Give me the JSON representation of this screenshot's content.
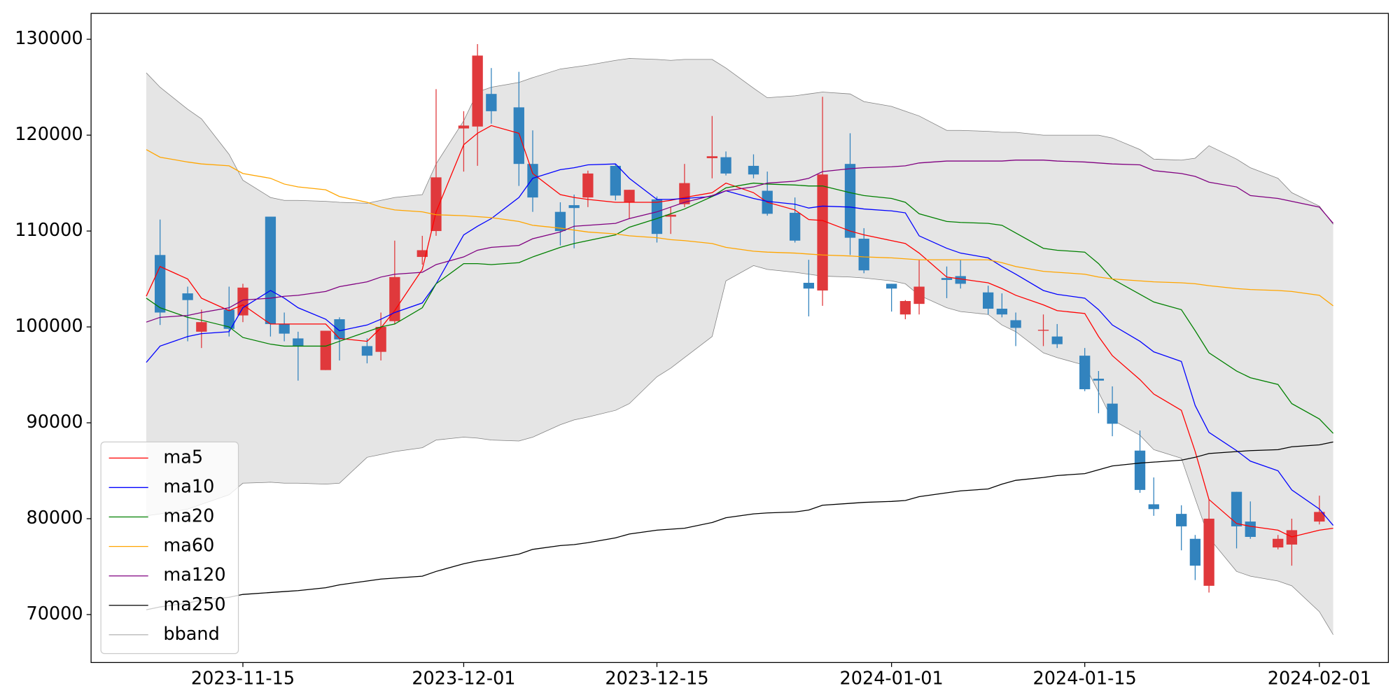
{
  "chart_data": {
    "type": "candlestick",
    "x": [
      "2023-11-08",
      "2023-11-09",
      "2023-11-11",
      "2023-11-12",
      "2023-11-14",
      "2023-11-15",
      "2023-11-17",
      "2023-11-18",
      "2023-11-19",
      "2023-11-21",
      "2023-11-22",
      "2023-11-24",
      "2023-11-25",
      "2023-11-26",
      "2023-11-28",
      "2023-11-29",
      "2023-12-01",
      "2023-12-02",
      "2023-12-03",
      "2023-12-05",
      "2023-12-06",
      "2023-12-08",
      "2023-12-09",
      "2023-12-10",
      "2023-12-12",
      "2023-12-13",
      "2023-12-15",
      "2023-12-16",
      "2023-12-17",
      "2023-12-19",
      "2023-12-20",
      "2023-12-22",
      "2023-12-23",
      "2023-12-25",
      "2023-12-26",
      "2023-12-27",
      "2023-12-29",
      "2023-12-30",
      "2024-01-01",
      "2024-01-02",
      "2024-01-03",
      "2024-01-05",
      "2024-01-06",
      "2024-01-08",
      "2024-01-09",
      "2024-01-10",
      "2024-01-12",
      "2024-01-13",
      "2024-01-15",
      "2024-01-16",
      "2024-01-17",
      "2024-01-19",
      "2024-01-20",
      "2024-01-22",
      "2024-01-23",
      "2024-01-24",
      "2024-01-26",
      "2024-01-27",
      "2024-01-29",
      "2024-01-30",
      "2024-02-01",
      "2024-02-02"
    ],
    "open": [
      null,
      107500,
      103500,
      99500,
      101800,
      101200,
      111500,
      100300,
      98800,
      95500,
      100800,
      98000,
      97400,
      100600,
      107300,
      110000,
      120700,
      120900,
      124300,
      122900,
      117000,
      112000,
      112700,
      113500,
      116800,
      113000,
      113300,
      111500,
      112800,
      117600,
      117700,
      116800,
      114200,
      111900,
      104600,
      103800,
      117000,
      109200,
      104500,
      101300,
      102400,
      105100,
      105300,
      103600,
      101900,
      100700,
      99600,
      99000,
      97000,
      94600,
      92000,
      87100,
      81500,
      80500,
      77900,
      73000,
      82800,
      79700,
      77000,
      77300,
      79700,
      null
    ],
    "high": [
      null,
      111200,
      104200,
      101800,
      104200,
      104500,
      111500,
      101500,
      99500,
      99600,
      101000,
      98800,
      101500,
      109000,
      109500,
      124800,
      122500,
      129500,
      127000,
      126600,
      120500,
      113000,
      113800,
      116300,
      117000,
      114300,
      113600,
      112500,
      117000,
      122000,
      118300,
      118000,
      116200,
      113500,
      107000,
      124000,
      120200,
      110300,
      104500,
      102800,
      107000,
      106300,
      107000,
      104300,
      103500,
      101500,
      101300,
      100300,
      97800,
      95400,
      93800,
      89200,
      84300,
      81400,
      78300,
      82000,
      82800,
      81800,
      78300,
      80000,
      82400,
      null
    ],
    "low": [
      null,
      100200,
      98500,
      97800,
      99000,
      100500,
      99000,
      98500,
      94400,
      95500,
      96500,
      96200,
      96500,
      100300,
      106500,
      109500,
      116200,
      116800,
      121200,
      114700,
      112000,
      108500,
      108200,
      112500,
      113200,
      111300,
      108800,
      109700,
      112500,
      115500,
      115800,
      115500,
      111600,
      108800,
      101100,
      102200,
      107500,
      105600,
      101600,
      100800,
      101300,
      103000,
      104000,
      101300,
      101000,
      98000,
      98000,
      97800,
      93300,
      91000,
      88600,
      82700,
      80300,
      76700,
      73600,
      72300,
      76900,
      77900,
      76800,
      75100,
      79400,
      null
    ],
    "close": [
      null,
      101500,
      102800,
      100500,
      99800,
      104100,
      100300,
      99300,
      98000,
      99600,
      98700,
      97000,
      100000,
      105200,
      108000,
      115600,
      121000,
      128300,
      122500,
      117000,
      113500,
      110000,
      112400,
      116000,
      113700,
      114300,
      109700,
      111700,
      115000,
      117800,
      116000,
      115900,
      111800,
      109000,
      104000,
      115900,
      109300,
      105900,
      104000,
      102700,
      104200,
      104900,
      104500,
      101900,
      101300,
      99900,
      99700,
      98200,
      93500,
      94400,
      89900,
      83000,
      81000,
      79200,
      75100,
      80000,
      79200,
      78100,
      77900,
      78800,
      80700,
      null
    ],
    "up_color": "#e0393c",
    "down_color": "#3283be",
    "series": [
      {
        "name": "ma5",
        "color": "#ff0000",
        "values": [
          103200,
          106300,
          105000,
          103000,
          101700,
          102300,
          100300,
          100300,
          100300,
          100300,
          98800,
          98500,
          99900,
          101700,
          106000,
          112000,
          119000,
          120200,
          121000,
          120200,
          116000,
          113800,
          113500,
          113300,
          113000,
          113000,
          113000,
          113200,
          113500,
          114000,
          115000,
          114000,
          113000,
          112200,
          111200,
          111100,
          110000,
          109600,
          109000,
          108700,
          107700,
          105200,
          105000,
          104600,
          104000,
          103300,
          102300,
          101700,
          101400,
          99000,
          97000,
          94500,
          93000,
          91300,
          87000,
          82000,
          79500,
          79200,
          78800,
          78100,
          78800,
          79000
        ]
      },
      {
        "name": "ma10",
        "color": "#0000ff",
        "values": [
          96300,
          98000,
          99000,
          99300,
          99500,
          102000,
          103800,
          103000,
          102000,
          100800,
          99600,
          100200,
          100800,
          101500,
          102500,
          104500,
          109600,
          110500,
          111300,
          113500,
          115500,
          116400,
          116600,
          116900,
          117000,
          115500,
          113300,
          113300,
          113400,
          113600,
          114200,
          113400,
          113100,
          112800,
          112400,
          112600,
          112500,
          112300,
          112100,
          111900,
          109500,
          108200,
          107700,
          107200,
          106300,
          105500,
          103800,
          103400,
          103000,
          101800,
          100200,
          98500,
          97400,
          96400,
          91800,
          89000,
          87100,
          86000,
          85000,
          83000,
          81000,
          79300
        ]
      },
      {
        "name": "ma20",
        "color": "#008000",
        "values": [
          103000,
          102000,
          101000,
          100700,
          100000,
          98900,
          98200,
          98000,
          98000,
          98000,
          98500,
          99500,
          100000,
          100300,
          102000,
          104500,
          106600,
          106600,
          106500,
          106700,
          107300,
          108300,
          108700,
          109000,
          109600,
          110400,
          111300,
          111800,
          112300,
          113600,
          114500,
          115000,
          114900,
          114800,
          114700,
          114700,
          114000,
          113700,
          113400,
          113000,
          111800,
          111000,
          110900,
          110800,
          110600,
          109800,
          108200,
          108000,
          107800,
          106600,
          105000,
          103400,
          102600,
          101800,
          99600,
          97300,
          95400,
          94700,
          94000,
          92000,
          90400,
          88900
        ]
      },
      {
        "name": "ma60",
        "color": "#ffa500",
        "values": [
          118500,
          117700,
          117200,
          117000,
          116800,
          116000,
          115500,
          114900,
          114600,
          114300,
          113600,
          113000,
          112500,
          112200,
          112000,
          111700,
          111600,
          111500,
          111400,
          111000,
          110600,
          110300,
          110100,
          109900,
          109700,
          109500,
          109300,
          109100,
          109000,
          108700,
          108300,
          107900,
          107800,
          107700,
          107600,
          107500,
          107400,
          107300,
          107200,
          107100,
          107000,
          107000,
          107000,
          107000,
          106700,
          106300,
          105800,
          105700,
          105500,
          105200,
          105000,
          104800,
          104700,
          104600,
          104500,
          104300,
          104000,
          103900,
          103800,
          103700,
          103300,
          102200
        ]
      },
      {
        "name": "ma120",
        "color": "#800080",
        "values": [
          100500,
          101000,
          101200,
          101500,
          102000,
          102800,
          103000,
          103200,
          103300,
          103700,
          104200,
          104700,
          105200,
          105500,
          105700,
          106500,
          107300,
          108000,
          108300,
          108500,
          109200,
          109900,
          110500,
          110600,
          110800,
          111300,
          112000,
          112500,
          113000,
          113700,
          114200,
          114600,
          115000,
          115200,
          115500,
          116200,
          116500,
          116600,
          116700,
          116800,
          117100,
          117300,
          117300,
          117300,
          117300,
          117400,
          117400,
          117300,
          117200,
          117100,
          117000,
          116900,
          116300,
          116000,
          115700,
          115100,
          114600,
          113700,
          113400,
          113100,
          112500,
          110800
        ]
      },
      {
        "name": "ma250",
        "color": "#000000",
        "values": [
          70500,
          70800,
          71200,
          71500,
          71800,
          72100,
          72300,
          72400,
          72500,
          72800,
          73100,
          73500,
          73700,
          73800,
          74000,
          74500,
          75300,
          75600,
          75800,
          76300,
          76800,
          77200,
          77300,
          77500,
          78000,
          78400,
          78800,
          78900,
          79000,
          79600,
          80100,
          80500,
          80600,
          80700,
          80900,
          81400,
          81600,
          81700,
          81800,
          81900,
          82300,
          82700,
          82900,
          83100,
          83600,
          84000,
          84300,
          84500,
          84700,
          85100,
          85500,
          85800,
          85900,
          86100,
          86400,
          86800,
          87000,
          87100,
          87200,
          87500,
          87700,
          88000
        ]
      }
    ],
    "bband": {
      "name": "bband",
      "color": "#808080",
      "fill": "#e5e5e5",
      "upper": [
        126500,
        125000,
        122700,
        121700,
        118000,
        115300,
        113500,
        113200,
        113200,
        113100,
        113000,
        112900,
        113200,
        113500,
        113800,
        117000,
        121500,
        124500,
        125000,
        125500,
        126000,
        126900,
        127100,
        127300,
        127800,
        128000,
        127900,
        127800,
        127900,
        127900,
        127000,
        124900,
        123900,
        124100,
        124300,
        124500,
        124300,
        123500,
        123000,
        122500,
        122000,
        120500,
        120500,
        120400,
        120300,
        120300,
        120000,
        120000,
        120000,
        120000,
        119700,
        118500,
        117500,
        117400,
        117600,
        118900,
        117500,
        116600,
        115500,
        114000,
        112600,
        110700
      ],
      "lower": [
        80300,
        80500,
        81000,
        81500,
        82500,
        83700,
        83800,
        83700,
        83700,
        83600,
        83700,
        86400,
        86700,
        87000,
        87400,
        88200,
        88500,
        88400,
        88200,
        88100,
        88500,
        89800,
        90300,
        90600,
        91300,
        92000,
        94800,
        95700,
        96800,
        99000,
        104800,
        106400,
        106000,
        105700,
        105500,
        105300,
        105200,
        105100,
        104800,
        104500,
        103300,
        102000,
        101600,
        101300,
        100200,
        99500,
        97300,
        96800,
        96000,
        93200,
        90300,
        88700,
        87200,
        86300,
        82100,
        78000,
        74500,
        74000,
        73500,
        73000,
        70300,
        67900
      ]
    },
    "xlim": [
      "2023-11-04",
      "2024-02-06"
    ],
    "xticks": [
      "2023-11-15",
      "2023-12-01",
      "2023-12-15",
      "2024-01-01",
      "2024-01-15",
      "2024-02-01"
    ],
    "ylim": [
      65000,
      132700
    ],
    "yticks": [
      70000,
      80000,
      90000,
      100000,
      110000,
      120000,
      130000
    ],
    "legend": "lower left"
  }
}
